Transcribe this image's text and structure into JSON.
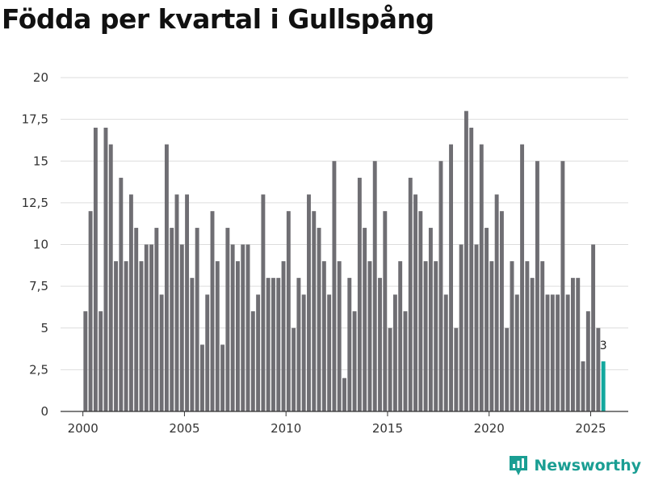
{
  "title": "Födda per kvartal i Gullspång",
  "brand": {
    "name": "Newsworthy"
  },
  "colors": {
    "bar": "#6f6e73",
    "highlight": "#13a89e",
    "grid": "#dddddd",
    "axis": "#333333",
    "brand": "#1a9e93"
  },
  "chart_data": {
    "type": "bar",
    "title": "Födda per kvartal i Gullspång",
    "xlabel": "",
    "ylabel": "",
    "ylim": [
      0,
      20
    ],
    "xlim": [
      1998.9,
      2026.85
    ],
    "y_ticks": [
      0,
      2.5,
      5,
      7.5,
      10,
      12.5,
      15,
      17.5,
      20
    ],
    "y_tick_labels": [
      "0",
      "2,5",
      "5",
      "7,5",
      "10",
      "12,5",
      "15",
      "17,5",
      "20"
    ],
    "x_ticks": [
      2000,
      2005,
      2010,
      2015,
      2020,
      2025
    ],
    "x_tick_labels": [
      "2000",
      "2005",
      "2010",
      "2015",
      "2020",
      "2025"
    ],
    "grid": true,
    "start_year": 2000,
    "start_quarter": 1,
    "values": [
      6,
      12,
      17,
      6,
      17,
      16,
      9,
      14,
      9,
      13,
      11,
      9,
      10,
      10,
      11,
      7,
      16,
      11,
      13,
      10,
      13,
      8,
      11,
      4,
      7,
      12,
      9,
      4,
      11,
      10,
      9,
      10,
      10,
      6,
      7,
      13,
      8,
      8,
      8,
      9,
      12,
      5,
      8,
      7,
      13,
      12,
      11,
      9,
      7,
      15,
      9,
      2,
      8,
      6,
      14,
      11,
      9,
      15,
      8,
      12,
      5,
      7,
      9,
      6,
      14,
      13,
      12,
      9,
      11,
      9,
      15,
      7,
      16,
      5,
      10,
      18,
      17,
      10,
      16,
      11,
      9,
      13,
      12,
      5,
      9,
      7,
      16,
      9,
      8,
      15,
      9,
      7,
      7,
      7,
      15,
      7,
      8,
      8,
      3,
      6,
      10,
      5,
      3
    ],
    "highlight_last": true,
    "last_value_label": "3"
  }
}
